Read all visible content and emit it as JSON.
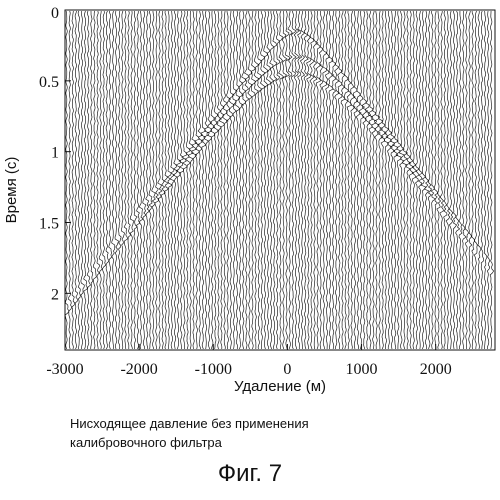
{
  "chart_data": {
    "type": "seismic_gather",
    "title": "",
    "xlabel": "Удаление (м)",
    "ylabel": "Время (с)",
    "x_ticks": [
      "-3000",
      "-2000",
      "-1000",
      "0",
      "1000",
      "2000"
    ],
    "x_tick_values": [
      -3000,
      -2000,
      -1000,
      0,
      1000,
      2000
    ],
    "y_ticks": [
      "0",
      "0.5",
      "1",
      "1.5",
      "2"
    ],
    "y_tick_values": [
      0,
      0.5,
      1,
      1.5,
      2
    ],
    "xlim": [
      -3000,
      2800
    ],
    "ylim": [
      0,
      2.4
    ],
    "y_inverted": true,
    "grid": false,
    "events": [
      {
        "apex_offset": 100,
        "apex_time": 0.15,
        "velocity": 1480
      },
      {
        "apex_offset": 100,
        "apex_time": 0.33,
        "velocity": 1480
      },
      {
        "apex_offset": 100,
        "apex_time": 0.45,
        "velocity": 1480
      }
    ]
  },
  "caption": {
    "line1": "Нисходящее давление без применения",
    "line2": "калибровочного фильтра"
  },
  "figure_label": "Фиг. 7",
  "colors": {
    "ink": "#111111",
    "background": "#ffffff"
  }
}
